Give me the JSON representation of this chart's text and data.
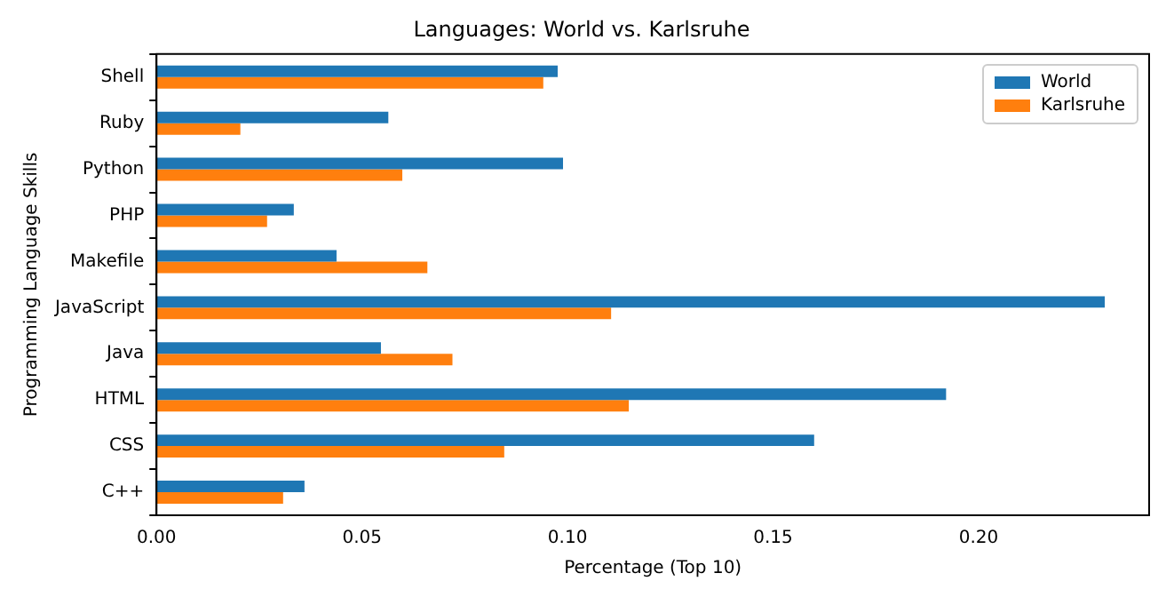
{
  "chart_data": {
    "type": "bar",
    "orientation": "horizontal",
    "title": "Languages: World vs. Karlsruhe",
    "xlabel": "Percentage (Top 10)",
    "ylabel": "Programming Language Skills",
    "categories": [
      "Shell",
      "Ruby",
      "Python",
      "PHP",
      "Makefile",
      "JavaScript",
      "Java",
      "HTML",
      "CSS",
      "C++"
    ],
    "series": [
      {
        "name": "World",
        "color": "#1f77b4",
        "values": [
          0.0976,
          0.0564,
          0.0989,
          0.0334,
          0.0438,
          0.2307,
          0.0546,
          0.1921,
          0.16,
          0.036
        ]
      },
      {
        "name": "Karlsruhe",
        "color": "#ff7f0e",
        "values": [
          0.0941,
          0.0204,
          0.0598,
          0.0269,
          0.0659,
          0.1106,
          0.072,
          0.1149,
          0.0846,
          0.0308
        ]
      }
    ],
    "xlim": [
      0,
      0.2415
    ],
    "xticks": [
      {
        "value": 0,
        "label": "0.00"
      },
      {
        "value": 0.05,
        "label": "0.05"
      },
      {
        "value": 0.1,
        "label": "0.10"
      },
      {
        "value": 0.15,
        "label": "0.15"
      },
      {
        "value": 0.2,
        "label": "0.20"
      }
    ],
    "grid": false,
    "legend": "top right"
  }
}
